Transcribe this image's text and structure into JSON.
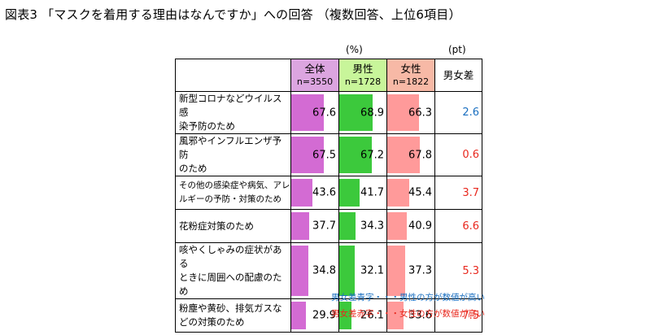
{
  "title": "図表3 「マスクを着用する理由はなんですか」への回答 （複数回答、上位6項目）",
  "unit_percent": "(%)",
  "unit_pt": "(pt)",
  "columns": {
    "all": {
      "name": "全体",
      "n": "n=3550"
    },
    "male": {
      "name": "男性",
      "n": "n=1728"
    },
    "female": {
      "name": "女性",
      "n": "n=1822"
    },
    "diff": {
      "name": "男女差"
    }
  },
  "colors": {
    "all_header": "#dca5e0",
    "male_header": "#c8f59a",
    "female_header": "#f7b9a6",
    "all_bar": "#d36bd3",
    "male_bar": "#3cc93c",
    "female_bar": "#ff9a9a",
    "blue": "#1a6fc0",
    "red": "#e8281e"
  },
  "notes": {
    "blue": "男女差青字・・・男性の方が数値が高い",
    "red": "男女差赤字・・・女性の方が数値が高い"
  },
  "chart_data": {
    "type": "table",
    "title": "図表3 「マスクを着用する理由はなんですか」への回答 （複数回答、上位6項目）",
    "series": [
      {
        "name": "全体",
        "values": [
          67.6,
          67.5,
          43.6,
          37.7,
          34.8,
          29.9
        ]
      },
      {
        "name": "男性",
        "values": [
          68.9,
          67.2,
          41.7,
          34.3,
          32.1,
          26.1
        ]
      },
      {
        "name": "女性",
        "values": [
          66.3,
          67.8,
          45.4,
          40.9,
          37.3,
          33.6
        ]
      }
    ],
    "rows": [
      {
        "label_lines": [
          "新型コロナなどウイルス感",
          "染予防のため"
        ],
        "all": 67.6,
        "male": 68.9,
        "female": 66.3,
        "diff": 2.6,
        "diff_color": "blue"
      },
      {
        "label_lines": [
          "風邪やインフルエンザ予防",
          "のため"
        ],
        "all": 67.5,
        "male": 67.2,
        "female": 67.8,
        "diff": 0.6,
        "diff_color": "red"
      },
      {
        "label_lines": [
          "その他の感染症や病気、アレ",
          "ルギーの予防・対策のため"
        ],
        "all": 43.6,
        "male": 41.7,
        "female": 45.4,
        "diff": 3.7,
        "diff_color": "red",
        "small": true
      },
      {
        "label_lines": [
          "花粉症対策のため"
        ],
        "all": 37.7,
        "male": 34.3,
        "female": 40.9,
        "diff": 6.6,
        "diff_color": "red"
      },
      {
        "label_lines": [
          "咳やくしゃみの症状がある",
          "ときに周囲への配慮のため"
        ],
        "all": 34.8,
        "male": 32.1,
        "female": 37.3,
        "diff": 5.3,
        "diff_color": "red"
      },
      {
        "label_lines": [
          "粉塵や黄砂、排気ガスな",
          "どの対策のため"
        ],
        "all": 29.9,
        "male": 26.1,
        "female": 33.6,
        "diff": 7.5,
        "diff_color": "red"
      }
    ]
  }
}
